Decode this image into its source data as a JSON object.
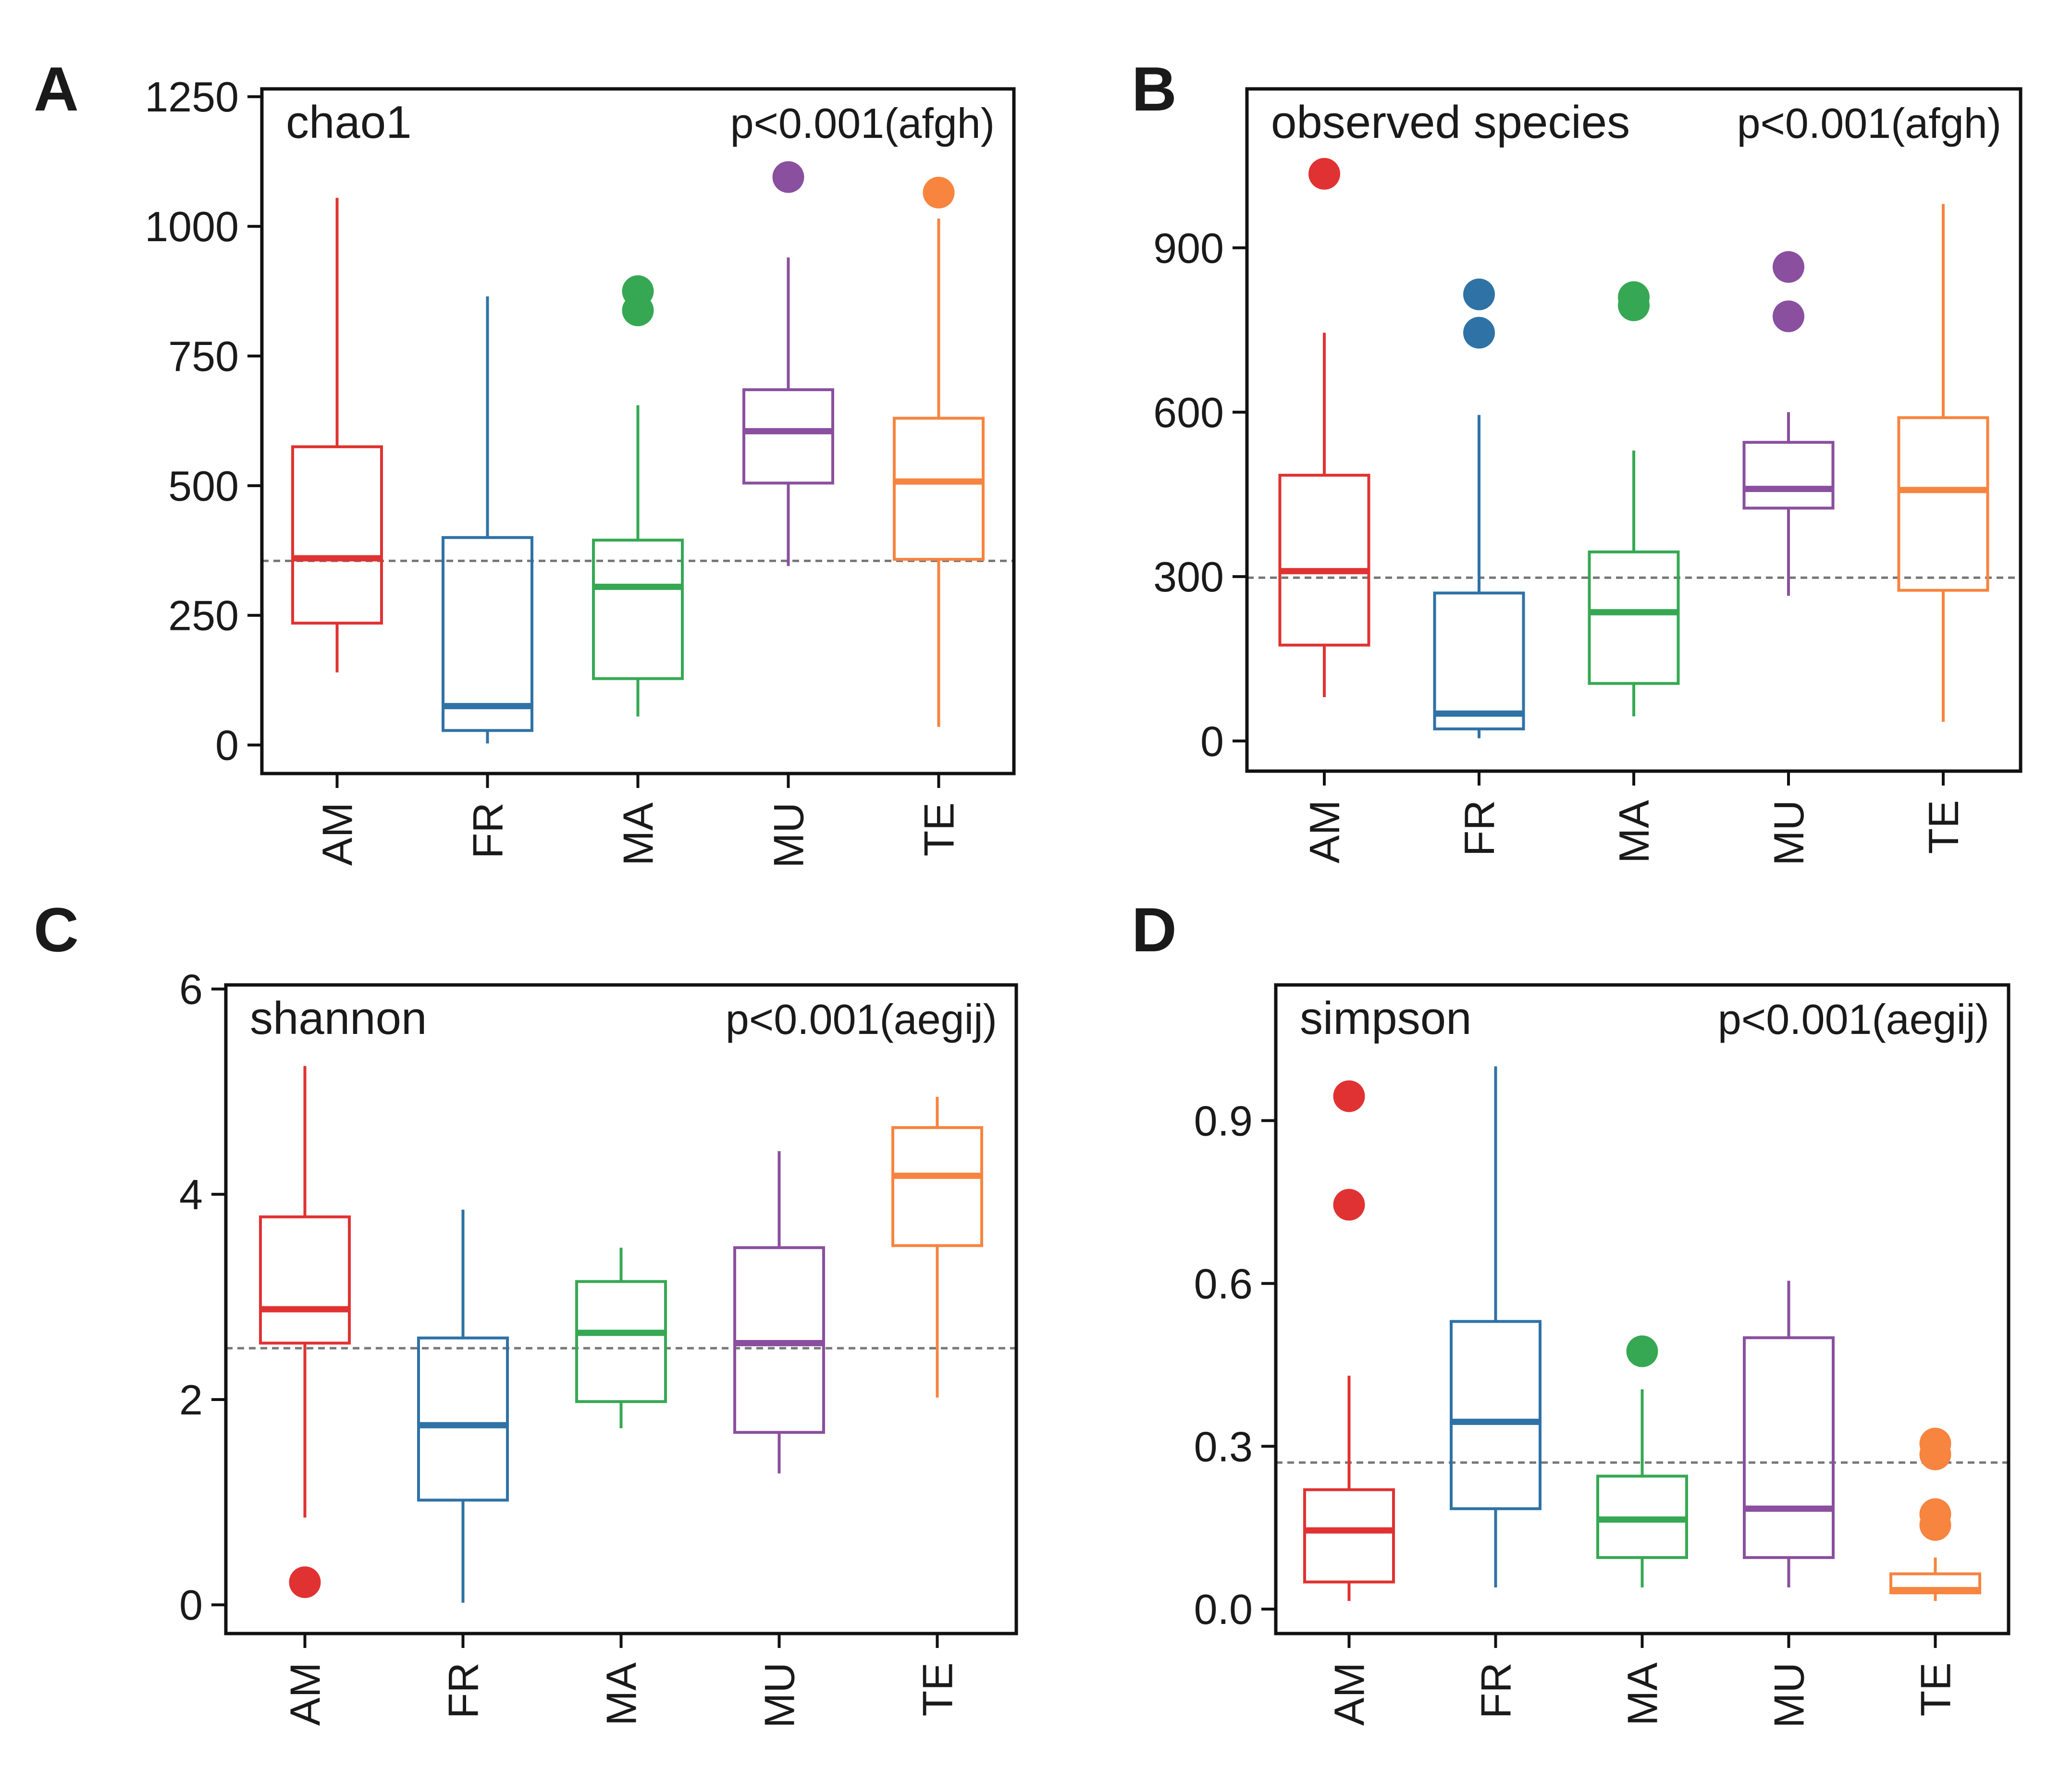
{
  "figure": {
    "group_colors": {
      "AM": "#e03232",
      "FR": "#2f72a6",
      "MA": "#36a853",
      "MU": "#8a4f9e",
      "TE": "#f7843f"
    },
    "reference_line_color": "#777777",
    "axis_color": "#111111"
  },
  "chart_data": [
    {
      "panel": "A",
      "type": "box",
      "title": "chao1",
      "pvalue": "p<0.001(afgh)",
      "categories": [
        "AM",
        "FR",
        "MA",
        "MU",
        "TE"
      ],
      "ylim": [
        -55,
        1265
      ],
      "yticks": [
        0,
        250,
        500,
        750,
        1000,
        1250
      ],
      "reference_line": 355,
      "boxes": [
        {
          "group": "AM",
          "whisker_low": 140,
          "q1": 235,
          "median": 360,
          "q3": 575,
          "whisker_high": 1055,
          "outliers": []
        },
        {
          "group": "FR",
          "whisker_low": 3,
          "q1": 28,
          "median": 75,
          "q3": 400,
          "whisker_high": 865,
          "outliers": []
        },
        {
          "group": "MA",
          "whisker_low": 55,
          "q1": 128,
          "median": 305,
          "q3": 395,
          "whisker_high": 655,
          "outliers": [
            838,
            875
          ]
        },
        {
          "group": "MU",
          "whisker_low": 345,
          "q1": 505,
          "median": 605,
          "q3": 685,
          "whisker_high": 940,
          "outliers": [
            1095
          ]
        },
        {
          "group": "TE",
          "whisker_low": 35,
          "q1": 358,
          "median": 508,
          "q3": 630,
          "whisker_high": 1015,
          "outliers": [
            1065
          ]
        }
      ]
    },
    {
      "panel": "B",
      "type": "box",
      "title": "observed species",
      "pvalue": "p<0.001(afgh)",
      "categories": [
        "AM",
        "FR",
        "MA",
        "MU",
        "TE"
      ],
      "ylim": [
        -55,
        1190
      ],
      "yticks": [
        0,
        300,
        600,
        900
      ],
      "reference_line": 298,
      "boxes": [
        {
          "group": "AM",
          "whisker_low": 80,
          "q1": 175,
          "median": 310,
          "q3": 485,
          "whisker_high": 745,
          "outliers": [
            1035
          ]
        },
        {
          "group": "FR",
          "whisker_low": 5,
          "q1": 22,
          "median": 50,
          "q3": 270,
          "whisker_high": 595,
          "outliers": [
            745,
            815
          ]
        },
        {
          "group": "MA",
          "whisker_low": 45,
          "q1": 105,
          "median": 235,
          "q3": 345,
          "whisker_high": 530,
          "outliers": [
            795,
            810
          ]
        },
        {
          "group": "MU",
          "whisker_low": 265,
          "q1": 425,
          "median": 460,
          "q3": 545,
          "whisker_high": 600,
          "outliers": [
            775,
            865
          ]
        },
        {
          "group": "TE",
          "whisker_low": 35,
          "q1": 275,
          "median": 458,
          "q3": 590,
          "whisker_high": 980,
          "outliers": []
        }
      ]
    },
    {
      "panel": "C",
      "type": "box",
      "title": "shannon",
      "pvalue": "p<0.001(aegij)",
      "categories": [
        "AM",
        "FR",
        "MA",
        "MU",
        "TE"
      ],
      "ylim": [
        -0.28,
        6.04
      ],
      "yticks": [
        0,
        2,
        4,
        6
      ],
      "reference_line": 2.5,
      "boxes": [
        {
          "group": "AM",
          "whisker_low": 0.85,
          "q1": 2.55,
          "median": 2.88,
          "q3": 3.78,
          "whisker_high": 5.25,
          "outliers": [
            0.22
          ]
        },
        {
          "group": "FR",
          "whisker_low": 0.02,
          "q1": 1.02,
          "median": 1.75,
          "q3": 2.6,
          "whisker_high": 3.85,
          "outliers": []
        },
        {
          "group": "MA",
          "whisker_low": 1.72,
          "q1": 1.98,
          "median": 2.65,
          "q3": 3.15,
          "whisker_high": 3.48,
          "outliers": []
        },
        {
          "group": "MU",
          "whisker_low": 1.28,
          "q1": 1.68,
          "median": 2.55,
          "q3": 3.48,
          "whisker_high": 4.42,
          "outliers": []
        },
        {
          "group": "TE",
          "whisker_low": 2.02,
          "q1": 3.5,
          "median": 4.18,
          "q3": 4.65,
          "whisker_high": 4.95,
          "outliers": []
        }
      ]
    },
    {
      "panel": "D",
      "type": "box",
      "title": "simpson",
      "pvalue": "p<0.001(aegij)",
      "categories": [
        "AM",
        "FR",
        "MA",
        "MU",
        "TE"
      ],
      "ylim": [
        -0.045,
        1.15
      ],
      "yticks": [
        0.0,
        0.3,
        0.6,
        0.9
      ],
      "ytick_labels": [
        "0.0",
        "0.3",
        "0.6",
        "0.9"
      ],
      "reference_line": 0.27,
      "boxes": [
        {
          "group": "AM",
          "whisker_low": 0.015,
          "q1": 0.05,
          "median": 0.145,
          "q3": 0.22,
          "whisker_high": 0.43,
          "outliers": [
            0.745,
            0.945
          ]
        },
        {
          "group": "FR",
          "whisker_low": 0.04,
          "q1": 0.185,
          "median": 0.345,
          "q3": 0.53,
          "whisker_high": 1.0,
          "outliers": []
        },
        {
          "group": "MA",
          "whisker_low": 0.04,
          "q1": 0.095,
          "median": 0.165,
          "q3": 0.245,
          "whisker_high": 0.405,
          "outliers": [
            0.475
          ]
        },
        {
          "group": "MU",
          "whisker_low": 0.04,
          "q1": 0.095,
          "median": 0.185,
          "q3": 0.5,
          "whisker_high": 0.605,
          "outliers": []
        },
        {
          "group": "TE",
          "whisker_low": 0.015,
          "q1": 0.03,
          "median": 0.035,
          "q3": 0.065,
          "whisker_high": 0.095,
          "outliers": [
            0.155,
            0.175,
            0.285,
            0.305
          ]
        }
      ]
    }
  ]
}
